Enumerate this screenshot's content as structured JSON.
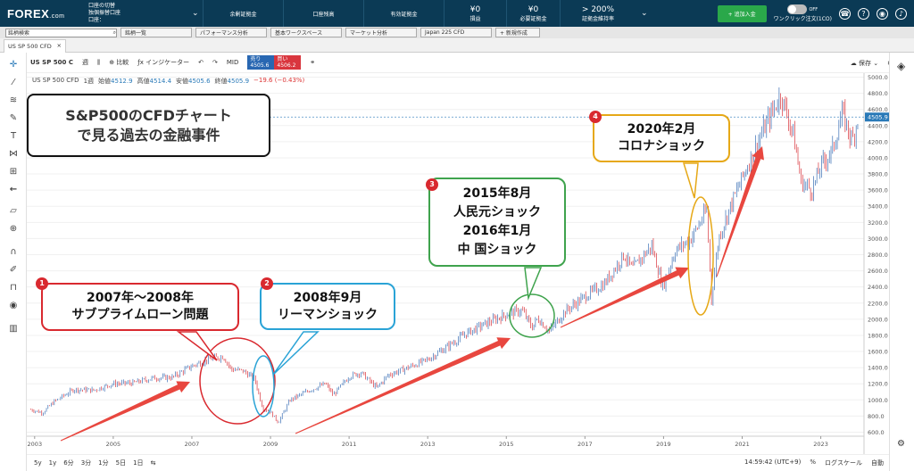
{
  "topbar": {
    "logo": "FOREX",
    "logo_suffix": ".com",
    "account_lines": [
      "口座の切替",
      "独個振替口座",
      "口座："
    ],
    "stats": [
      {
        "label": "余剰証拠金",
        "value": ""
      },
      {
        "label": "口座残高",
        "value": ""
      },
      {
        "label": "有効証拠金",
        "value": ""
      },
      {
        "label": "損益",
        "value": "¥0"
      },
      {
        "label": "必要証拠金",
        "value": "¥0"
      },
      {
        "label": "証拠金維持率",
        "value": "> 200%"
      }
    ],
    "deposit_label": "+ 追加入金",
    "oneclick_label": "ワンクリック注文(1CO)",
    "toggle_label": "OFF"
  },
  "bar2": {
    "search_placeholder": "銘柄検索",
    "tabs": [
      "銘柄一覧",
      "パフォーマンス分析",
      "基本ワークスペース",
      "マーケット分析",
      "Japan 225 CFD",
      "+ 新規作成"
    ]
  },
  "instrument_tab": "US SP 500 CFD",
  "toolbar": {
    "symbol": "US SP 500 C",
    "period": "週",
    "compare": "比較",
    "indicator": "インジケーター",
    "mid": "MID",
    "bid_label": "売り",
    "bid_value": "4505.6",
    "ask_label": "買い",
    "ask_value": "4506.2",
    "save": "保存"
  },
  "ohlc": {
    "name": "US SP 500 CFD",
    "period": "1週",
    "open_label": "始値",
    "open": "4512.9",
    "high_label": "高値",
    "high": "4514.4",
    "low_label": "安値",
    "low": "4505.6",
    "close_label": "終値",
    "close": "4505.9",
    "change": "−19.6 (−0.43%)"
  },
  "title_box": {
    "line1": "S&P500のCFDチャート",
    "line2": "で見る過去の金融事件"
  },
  "annotations": [
    {
      "number": "1",
      "line1": "2007年～2008年",
      "line2": "サブプライムローン問題",
      "color": "#d9292f"
    },
    {
      "number": "2",
      "line1": "2008年9月",
      "line2": "リーマンショック",
      "color": "#2aa3d6"
    },
    {
      "number": "3",
      "line1": "2015年8月",
      "line2": "人民元ショック",
      "line3": "2016年1月",
      "line4": "中 国ショック",
      "color": "#3fa34d"
    },
    {
      "number": "4",
      "line1": "2020年2月",
      "line2": "コロナショック",
      "color": "#e6a817"
    }
  ],
  "chart_data": {
    "type": "line",
    "title": "",
    "xlabel": "",
    "ylabel": "",
    "x_ticks": [
      "2003",
      "2005",
      "2007",
      "2009",
      "2011",
      "2013",
      "2015",
      "2017",
      "2019",
      "2021",
      "2023"
    ],
    "y_ticks": [
      "600.0",
      "800.0",
      "1000.0",
      "1200.0",
      "1400.0",
      "1600.0",
      "1800.0",
      "2000.0",
      "2200.0",
      "2400.0",
      "2600.0",
      "2800.0",
      "3000.0",
      "3200.0",
      "3400.0",
      "3600.0",
      "3800.0",
      "4000.0",
      "4200.0",
      "4400.0",
      "4600.0",
      "4800.0",
      "5000.0"
    ],
    "ylim": [
      550,
      5050
    ],
    "xlim": [
      2002.8,
      2024.1
    ],
    "last_price_label": "4505.9",
    "last_price": 4505.9,
    "series": [
      {
        "x": [
          2002.9,
          2003.2,
          2003.5,
          2004.0,
          2004.5,
          2005.0,
          2005.5,
          2006.0,
          2006.5,
          2007.0,
          2007.4,
          2007.8,
          2008.0,
          2008.3,
          2008.6,
          2008.8,
          2009.0,
          2009.2,
          2009.5,
          2010.0,
          2010.4,
          2010.6,
          2011.0,
          2011.3,
          2011.7,
          2012.0,
          2012.5,
          2013.0,
          2013.5,
          2014.0,
          2014.5,
          2015.0,
          2015.4,
          2015.65,
          2015.8,
          2016.1,
          2016.5,
          2017.0,
          2017.5,
          2018.0,
          2018.2,
          2018.7,
          2018.98,
          2019.3,
          2019.7,
          2020.1,
          2020.22,
          2020.4,
          2020.7,
          2021.0,
          2021.5,
          2021.98,
          2022.3,
          2022.5,
          2022.78,
          2023.0,
          2023.3,
          2023.55,
          2023.8,
          2023.95
        ],
        "values": [
          880,
          840,
          980,
          1130,
          1120,
          1200,
          1210,
          1270,
          1280,
          1420,
          1500,
          1540,
          1380,
          1360,
          1260,
          900,
          850,
          720,
          1000,
          1120,
          1200,
          1060,
          1290,
          1340,
          1150,
          1310,
          1400,
          1500,
          1660,
          1830,
          1950,
          2060,
          2110,
          1900,
          2010,
          1850,
          2100,
          2280,
          2440,
          2800,
          2620,
          2910,
          2400,
          2850,
          3000,
          3350,
          2250,
          3000,
          3400,
          3750,
          4300,
          4780,
          4300,
          3700,
          3600,
          3900,
          4100,
          4560,
          4200,
          4505
        ]
      }
    ]
  },
  "bottom": {
    "ranges": [
      "5y",
      "1y",
      "6分",
      "3分",
      "1分",
      "5日",
      "1日"
    ],
    "time": "14:59:42 (UTC+9)",
    "percent": "%",
    "log": "ログスケール",
    "auto": "自動"
  }
}
